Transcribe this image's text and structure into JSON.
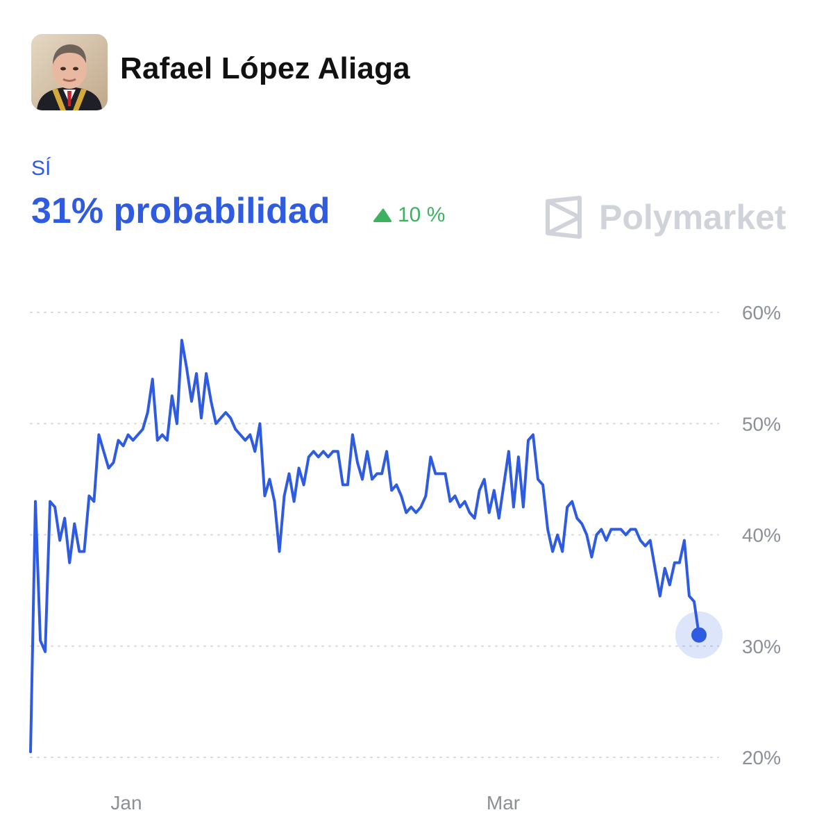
{
  "header": {
    "name": "Rafael López Aliaga",
    "avatar_icon": "person-photo",
    "outcome_label": "SÍ",
    "probability_text": "31% probabilidad",
    "change_text": "10 %",
    "change_icon": "triangle-up-icon",
    "brand": "Polymarket",
    "brand_icon": "polymarket-logo-icon"
  },
  "colors": {
    "accent": "#2e5bdf",
    "positive": "#3cb15f",
    "axis_text": "#8b8f96",
    "grid": "#d6d8dc"
  },
  "chart_data": {
    "type": "line",
    "title": "",
    "xlabel": "",
    "ylabel": "",
    "x_tick_labels": [
      "Jan",
      "Mar"
    ],
    "y_tick_labels": [
      "60%",
      "50%",
      "40%",
      "30%",
      "20%"
    ],
    "ylim": [
      20,
      60
    ],
    "grid": true,
    "series": [
      {
        "values": [
          20.5,
          43.0,
          30.5,
          29.5,
          43.0,
          42.5,
          39.5,
          41.5,
          37.5,
          41.0,
          38.5,
          38.5,
          43.5,
          43.0,
          49.0,
          47.5,
          46.0,
          46.5,
          48.5,
          48.0,
          49.0,
          48.5,
          49.0,
          49.5,
          51.0,
          54.0,
          48.5,
          49.0,
          48.5,
          52.5,
          50.0,
          57.5,
          55.0,
          52.0,
          54.5,
          50.5,
          54.5,
          52.0,
          50.0,
          50.5,
          51.0,
          50.5,
          49.5,
          49.0,
          48.5,
          49.0,
          47.5,
          50.0,
          43.5,
          45.0,
          43.0,
          38.5,
          43.5,
          45.5,
          43.0,
          46.0,
          44.5,
          47.0,
          47.5,
          47.0,
          47.5,
          47.0,
          47.5,
          47.5,
          44.5,
          44.5,
          49.0,
          46.5,
          45.0,
          47.5,
          45.0,
          45.5,
          45.5,
          47.5,
          44.0,
          44.5,
          43.5,
          42.0,
          42.5,
          42.0,
          42.5,
          43.5,
          47.0,
          45.5,
          45.5,
          45.5,
          43.0,
          43.5,
          42.5,
          43.0,
          42.0,
          41.5,
          44.0,
          45.0,
          42.0,
          44.0,
          41.5,
          44.5,
          47.5,
          42.5,
          47.0,
          42.5,
          48.5,
          49.0,
          45.0,
          44.5,
          40.5,
          38.5,
          40.0,
          38.5,
          42.5,
          43.0,
          41.5,
          41.0,
          40.0,
          38.0,
          40.0,
          40.5,
          39.5,
          40.5,
          40.5,
          40.5,
          40.0,
          40.5,
          40.5,
          39.5,
          39.0,
          39.5,
          37.0,
          34.5,
          37.0,
          35.5,
          37.5,
          37.5,
          39.5,
          34.5,
          34.0,
          31.0
        ]
      }
    ]
  }
}
